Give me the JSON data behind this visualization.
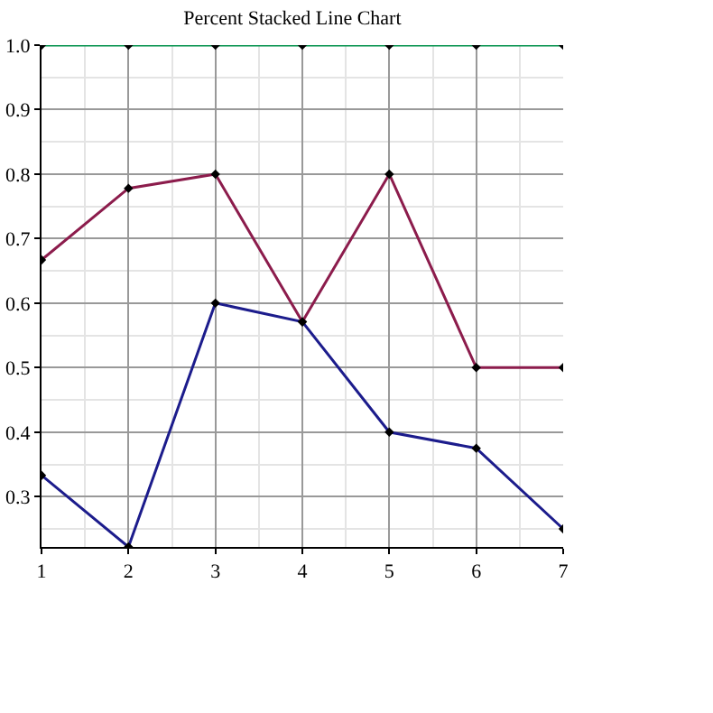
{
  "chart_data": {
    "type": "line",
    "title": "Percent Stacked Line Chart",
    "x": [
      1,
      2,
      3,
      4,
      5,
      6,
      7
    ],
    "series": [
      {
        "color": "#1c1c8c",
        "values": [
          0.333,
          0.222,
          0.6,
          0.571,
          0.4,
          0.375,
          0.25
        ]
      },
      {
        "color": "#8c1c4c",
        "values": [
          0.667,
          0.778,
          0.8,
          0.571,
          0.8,
          0.5,
          0.5
        ]
      },
      {
        "color": "#00904a",
        "values": [
          1,
          1,
          1,
          1,
          1,
          1,
          1
        ]
      }
    ],
    "xlim": [
      1,
      7
    ],
    "xticks": [
      1,
      2,
      3,
      4,
      5,
      6,
      7
    ],
    "ylim": [
      0.222,
      1
    ],
    "yticks": [
      0.3,
      0.4,
      0.5,
      0.6,
      0.7,
      0.8,
      0.9,
      {
        "value": 1,
        "label": "1.0"
      }
    ],
    "grid": true,
    "marker": "diamond",
    "line_style": "solid"
  }
}
